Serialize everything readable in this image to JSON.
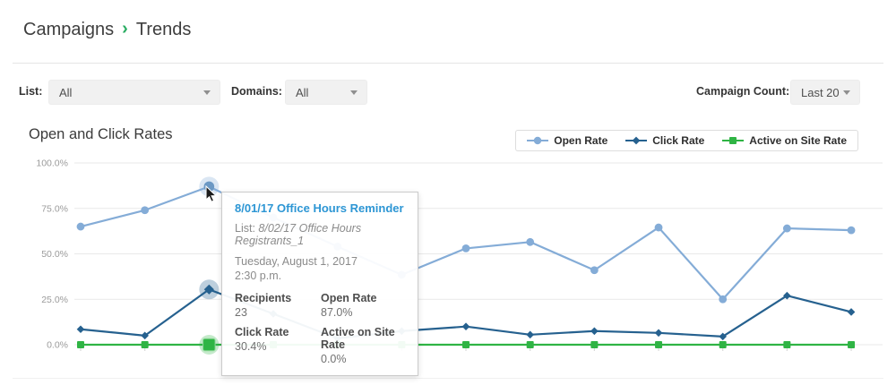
{
  "breadcrumb": {
    "parent": "Campaigns",
    "separator": "›",
    "current": "Trends"
  },
  "filters": {
    "list_label": "List:",
    "list_value": "All",
    "domains_label": "Domains:",
    "domains_value": "All",
    "campaign_count_label": "Campaign Count:",
    "campaign_count_value": "Last 20"
  },
  "chart_header": {
    "title": "Open and Click Rates"
  },
  "chart_data": {
    "type": "line",
    "title": "Open and Click Rates",
    "xlabel": "",
    "ylabel": "",
    "ylim": [
      0,
      100
    ],
    "grid": true,
    "legend_position": "top-right",
    "y_ticks": [
      {
        "label": "100.0%",
        "value": 100
      },
      {
        "label": "75.0%",
        "value": 75
      },
      {
        "label": "50.0%",
        "value": 50
      },
      {
        "label": "25.0%",
        "value": 25
      },
      {
        "label": "0.0%",
        "value": 0
      }
    ],
    "x": [
      1,
      2,
      3,
      4,
      5,
      6,
      7,
      8,
      9,
      10,
      11,
      12,
      13
    ],
    "highlight_index": 2,
    "series": [
      {
        "name": "Open Rate",
        "marker": "circle",
        "color": "#84acd7",
        "values": [
          65,
          74,
          87,
          70,
          54,
          38.5,
          53,
          56.5,
          41,
          64.5,
          25,
          64,
          63
        ]
      },
      {
        "name": "Click Rate",
        "marker": "diamond",
        "color": "#26618f",
        "values": [
          8.5,
          5,
          30.4,
          17,
          3.5,
          7.5,
          10,
          5.5,
          7.5,
          6.5,
          4.5,
          27,
          18
        ]
      },
      {
        "name": "Active on Site Rate",
        "marker": "square",
        "color": "#2fb444",
        "values": [
          0,
          0,
          0,
          0,
          0,
          0,
          0,
          0,
          0,
          0,
          0,
          0,
          0
        ]
      }
    ]
  },
  "tooltip": {
    "title": "8/01/17 Office Hours Reminder",
    "list_label": "List:",
    "list_value": "8/02/17 Office Hours Registrants_1",
    "date": "Tuesday, August 1, 2017",
    "time": "2:30 p.m.",
    "stats": [
      {
        "label": "Recipients",
        "value": "23"
      },
      {
        "label": "Open Rate",
        "value": "87.0%"
      },
      {
        "label": "Click Rate",
        "value": "30.4%"
      },
      {
        "label": "Active on Site Rate",
        "value": "0.0%"
      }
    ]
  }
}
